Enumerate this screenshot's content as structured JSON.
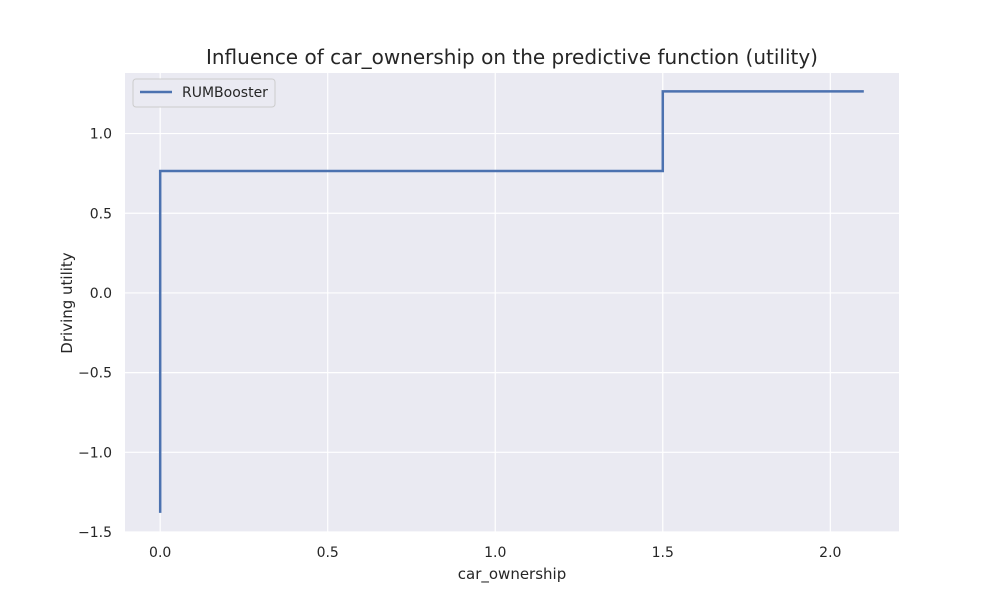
{
  "chart_data": {
    "type": "line",
    "title": "Influence of car_ownership on the predictive function (utility)",
    "xlabel": "car_ownership",
    "ylabel": "Driving utility",
    "xlim": [
      -0.105,
      2.205
    ],
    "ylim": [
      -1.5,
      1.38
    ],
    "xticks": [
      0.0,
      0.5,
      1.0,
      1.5,
      2.0
    ],
    "xtick_labels": [
      "0.0",
      "0.5",
      "1.0",
      "1.5",
      "2.0"
    ],
    "yticks": [
      -1.5,
      -1.0,
      -0.5,
      0.0,
      0.5,
      1.0
    ],
    "ytick_labels": [
      "−1.5",
      "−1.0",
      "−0.5",
      "0.0",
      "0.5",
      "1.0"
    ],
    "grid": true,
    "legend_position": "top-left",
    "series": [
      {
        "name": "RUMBooster",
        "color": "#4c72b0",
        "x": [
          0.0,
          0.0,
          1.5,
          1.5,
          2.1
        ],
        "y": [
          -1.38,
          0.765,
          0.765,
          1.265,
          1.265
        ]
      }
    ]
  },
  "colors": {
    "plot_background": "#eaeaf2",
    "grid": "#ffffff",
    "line": "#4c72b0"
  }
}
